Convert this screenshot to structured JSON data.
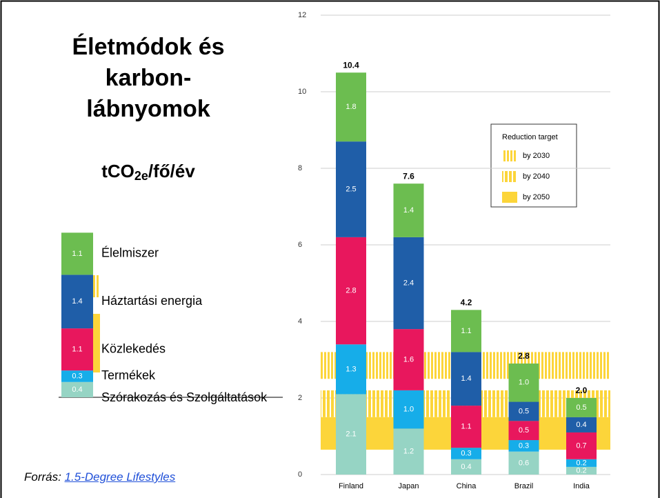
{
  "slide": {
    "title_lines": [
      "Életmódok és",
      "karbon-",
      "lábnyomok"
    ],
    "unit": {
      "main": "tCO",
      "sub": "2e",
      "rest": "/fő/év"
    },
    "source": {
      "prefix": "Forrás: ",
      "link": "1.5-Degree Lifestyles"
    }
  },
  "legend_example": {
    "values": [
      0.4,
      0.3,
      1.1,
      1.4,
      1.1
    ],
    "value_labels": [
      "0.4",
      "0.3",
      "1.1",
      "1.4",
      "1.1"
    ]
  },
  "chart_data": {
    "type": "stacked_bar",
    "categories": [
      "Finland",
      "Japan",
      "China",
      "Brazil",
      "India"
    ],
    "series": [
      {
        "name": "Szórakozás és Szolgáltatások",
        "color": "#96d4c4",
        "values": [
          2.1,
          1.2,
          0.4,
          0.6,
          0.2
        ],
        "value_labels": [
          "2.1",
          "1.2",
          "0.4",
          "0.6",
          "0.2"
        ]
      },
      {
        "name": "Termékek",
        "color": "#16ade9",
        "values": [
          1.3,
          1.0,
          0.3,
          0.3,
          0.2
        ],
        "value_labels": [
          "1.3",
          "1.0",
          "0.3",
          "0.3",
          "0.2"
        ]
      },
      {
        "name": "Közlekedés",
        "color": "#e8175d",
        "values": [
          2.8,
          1.6,
          1.1,
          0.5,
          0.7
        ],
        "value_labels": [
          "2.8",
          "1.6",
          "1.1",
          "0.5",
          "0.7"
        ]
      },
      {
        "name": "Háztartási energia",
        "color": "#1f5ea8",
        "values": [
          2.5,
          2.4,
          1.4,
          0.5,
          0.4
        ],
        "value_labels": [
          "2.5",
          "2.4",
          "1.4",
          "0.5",
          "0.4"
        ]
      },
      {
        "name": "Élelmiszer",
        "color": "#6cbd50",
        "values": [
          1.8,
          1.4,
          1.1,
          1.0,
          0.5
        ],
        "value_labels": [
          "1.8",
          "1.4",
          "1.1",
          "1.0",
          "0.5"
        ]
      }
    ],
    "totals": [
      10.4,
      7.6,
      4.2,
      2.8,
      2.0
    ],
    "total_labels": [
      "10.4",
      "7.6",
      "4.2",
      "2.8",
      "2.0"
    ],
    "ylim": [
      0,
      12
    ],
    "yticks": [
      0,
      2,
      4,
      6,
      8,
      10,
      12
    ],
    "grid": true,
    "legend_title": "Reduction target",
    "target_bands": [
      {
        "name": "by 2030",
        "range": [
          2.5,
          3.2
        ],
        "style": "hatch-thin",
        "color": "#fcd53a"
      },
      {
        "name": "by 2040",
        "range": [
          1.5,
          2.2
        ],
        "style": "hatch-wide",
        "color": "#fcd53a"
      },
      {
        "name": "by 2050",
        "range": [
          0.65,
          1.5
        ],
        "style": "solid",
        "color": "#fcd53a"
      }
    ]
  }
}
